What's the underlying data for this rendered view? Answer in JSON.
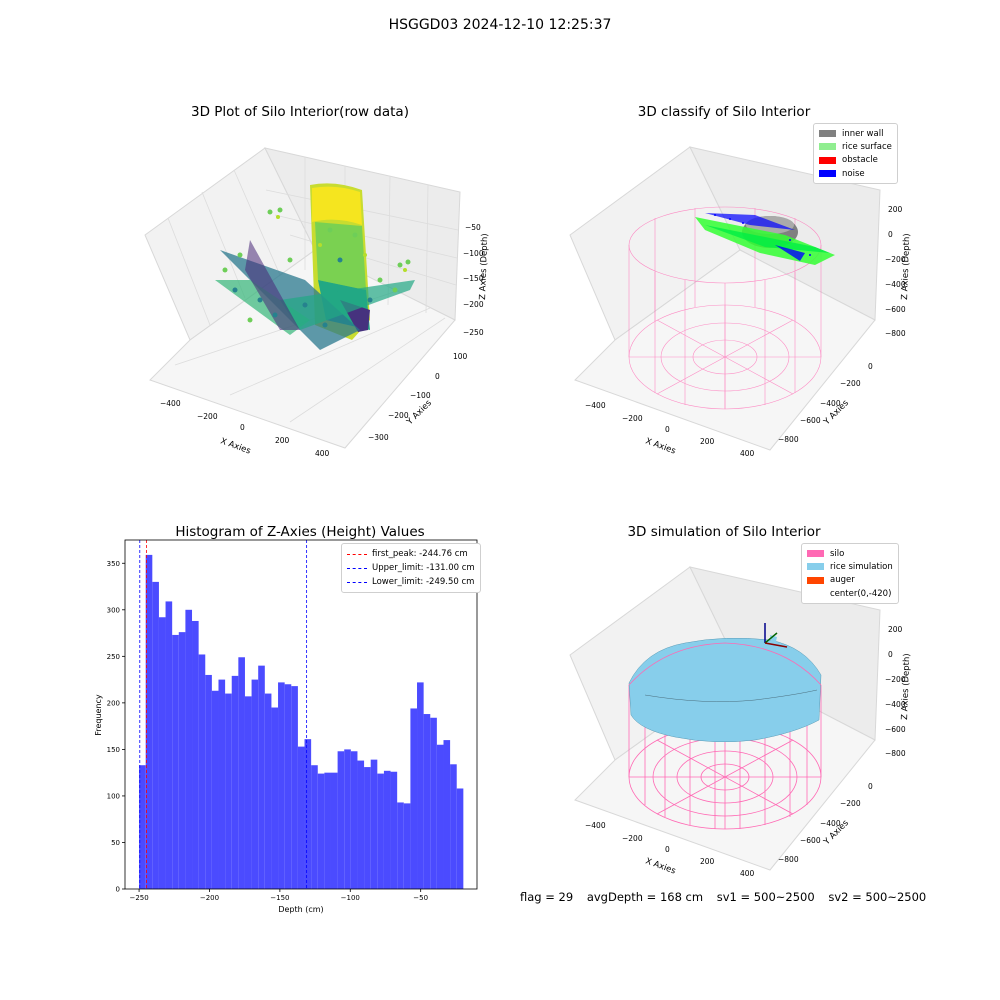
{
  "figure": {
    "suptitle": "HSGGD03 2024-12-10 12:25:37"
  },
  "status": {
    "flag": "flag = 29",
    "avg_depth": "avgDepth = 168 cm",
    "sv1": "sv1 = 500~2500",
    "sv2": "sv2 = 500~2500"
  },
  "colors": {
    "inner_wall": "#808080",
    "rice_surface": "#90ee90",
    "obstacle": "#ff0000",
    "noise": "#0000ff",
    "silo": "#ff69b4",
    "rice_simulation": "#87ceeb",
    "auger": "#ff4500",
    "hist_bar": "#4b4bff"
  },
  "panels": {
    "raw": {
      "title": "3D Plot of Silo Interior(row data)",
      "xlabel": "X Axies",
      "ylabel": "Y Axies",
      "zlabel": "Z Axies (Depth)",
      "xticks": [
        "−400",
        "−200",
        "0",
        "200",
        "400"
      ],
      "yticks": [
        "100",
        "0",
        "−100",
        "−200",
        "−300"
      ],
      "zticks": [
        "−50",
        "−100",
        "−150",
        "−200",
        "−250"
      ]
    },
    "classify": {
      "title": "3D classify of Silo Interior",
      "xlabel": "X Axies",
      "ylabel": "Y Axies",
      "zlabel": "Z Axies (Depth)",
      "xticks": [
        "−400",
        "−200",
        "0",
        "200",
        "400"
      ],
      "yticks": [
        "0",
        "−200",
        "−400",
        "−600",
        "−800"
      ],
      "zticks": [
        "200",
        "0",
        "−200",
        "−400",
        "−600",
        "−800"
      ],
      "legend": [
        {
          "label": "inner wall",
          "color": "#808080"
        },
        {
          "label": "rice surface",
          "color": "#90ee90"
        },
        {
          "label": "obstacle",
          "color": "#ff0000"
        },
        {
          "label": "noise",
          "color": "#0000ff"
        }
      ]
    },
    "simulation": {
      "title": "3D simulation of Silo Interior",
      "xlabel": "X Axies",
      "ylabel": "Y Axies",
      "zlabel": "Z Axies (Depth)",
      "xticks": [
        "−400",
        "−200",
        "0",
        "200",
        "400"
      ],
      "yticks": [
        "0",
        "−200",
        "−400",
        "−600",
        "−800"
      ],
      "zticks": [
        "200",
        "0",
        "−200",
        "−400",
        "−600",
        "−800"
      ],
      "legend": [
        {
          "label": "silo",
          "color": "#ff69b4"
        },
        {
          "label": "rice simulation",
          "color": "#87ceeb"
        },
        {
          "label": "auger",
          "color": "#ff4500"
        },
        {
          "label": "center(0,-420)",
          "color": ""
        }
      ]
    }
  },
  "chart_data": {
    "type": "bar",
    "title": "Histogram of Z-Axies (Height) Values",
    "xlabel": "Depth (cm)",
    "ylabel": "Frequency",
    "xlim": [
      -260,
      -10
    ],
    "ylim": [
      0,
      375
    ],
    "xticks": [
      -250,
      -200,
      -150,
      -100,
      -50
    ],
    "yticks": [
      0,
      50,
      100,
      150,
      200,
      250,
      300,
      350
    ],
    "bin_start": -250,
    "bin_width": 4.7,
    "values": [
      133,
      359,
      330,
      292,
      309,
      273,
      276,
      300,
      288,
      252,
      230,
      213,
      225,
      210,
      229,
      249,
      207,
      225,
      240,
      210,
      195,
      222,
      220,
      218,
      153,
      161,
      133,
      124,
      125,
      125,
      148,
      150,
      148,
      138,
      131,
      139,
      124,
      127,
      126,
      93,
      92,
      194,
      222,
      188,
      184,
      155,
      160,
      134,
      108
    ],
    "reference_lines": [
      {
        "label": "first_peak: -244.76 cm",
        "value": -244.76,
        "color": "#ff0000"
      },
      {
        "label": "Upper_limit: -131.00 cm",
        "value": -131.0,
        "color": "#0000ff"
      },
      {
        "label": "Lower_limit: -249.50 cm",
        "value": -249.5,
        "color": "#0000ff"
      }
    ],
    "legend_position": "upper right"
  }
}
